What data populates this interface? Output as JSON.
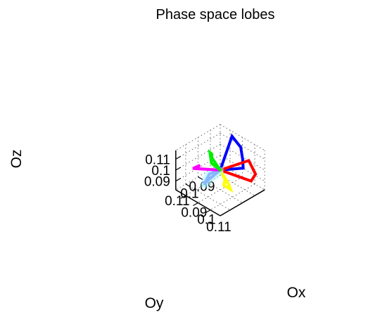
{
  "chart_data": {
    "type": "line",
    "projection": "3d",
    "title": "Phase space lobes",
    "xlabel": "Ox",
    "ylabel": "Oy",
    "zlabel": "Oz",
    "grid": true,
    "xlim": [
      0.082,
      0.118
    ],
    "ylim": [
      0.082,
      0.118
    ],
    "zlim": [
      0.082,
      0.118
    ],
    "xticks": [
      "0.09",
      "0.1",
      "0.11"
    ],
    "yticks": [
      "0.09",
      "0.1",
      "0.11"
    ],
    "zticks": [
      "0.09",
      "0.1",
      "0.11"
    ],
    "series": [
      {
        "color": "#0000ff",
        "highlight": "",
        "points": [
          [
            0.1,
            0.1,
            0.1
          ],
          [
            0.1081,
            0.0895,
            0.1002
          ],
          [
            0.1127,
            0.0945,
            0.1145
          ],
          [
            0.1073,
            0.0907,
            0.1195
          ],
          [
            0.1044,
            0.0949,
            0.1304
          ],
          [
            0.1,
            0.1,
            0.1
          ]
        ]
      },
      {
        "color": "#ff0000",
        "highlight": "",
        "points": [
          [
            0.1,
            0.1,
            0.1
          ],
          [
            0.1188,
            0.0938,
            0.0983
          ],
          [
            0.1175,
            0.0889,
            0.1005
          ],
          [
            0.113,
            0.0899,
            0.1106
          ],
          [
            0.1,
            0.1,
            0.1
          ]
        ]
      },
      {
        "color": "#ffff00",
        "highlight": "",
        "points": [
          [
            0.1,
            0.1,
            0.1
          ],
          [
            0.1066,
            0.0996,
            0.0906
          ],
          [
            0.1117,
            0.1034,
            0.0923
          ],
          [
            0.1053,
            0.1025,
            0.0914
          ],
          [
            0.1035,
            0.0995,
            0.0932
          ],
          [
            0.1,
            0.1,
            0.1
          ]
        ]
      },
      {
        "color": "#8ab6ff",
        "highlight": "#a6f4ff",
        "points": [
          [
            0.1,
            0.1,
            0.1
          ],
          [
            0.0912,
            0.1,
            0.0906
          ],
          [
            0.0977,
            0.1107,
            0.0921
          ],
          [
            0.0974,
            0.1074,
            0.0939
          ],
          [
            0.1,
            0.1,
            0.1
          ]
        ]
      },
      {
        "color": "#ff00ff",
        "highlight": "",
        "points": [
          [
            0.1,
            0.1,
            0.1
          ],
          [
            0.0902,
            0.1098,
            0.1015
          ],
          [
            0.0918,
            0.1082,
            0.1045
          ],
          [
            0.0914,
            0.1135,
            0.1047
          ],
          [
            0.1,
            0.1,
            0.1
          ]
        ]
      },
      {
        "color": "#00ee00",
        "highlight": "",
        "points": [
          [
            0.1,
            0.1,
            0.1
          ],
          [
            0.0996,
            0.1067,
            0.1104
          ],
          [
            0.1,
            0.1084,
            0.1217
          ],
          [
            0.0994,
            0.1062,
            0.1183
          ],
          [
            0.0994,
            0.1062,
            0.1149
          ],
          [
            0.1,
            0.1,
            0.1
          ]
        ]
      }
    ]
  }
}
